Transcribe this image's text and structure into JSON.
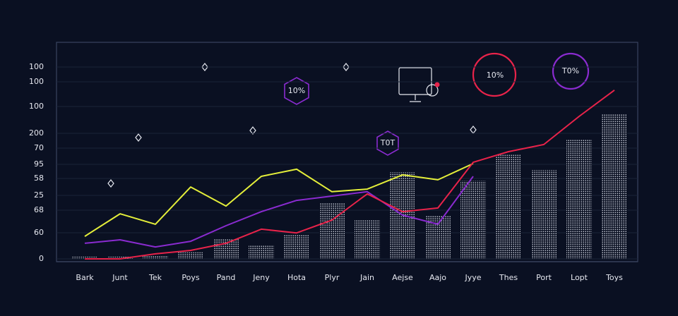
{
  "chart_data": {
    "type": "bar",
    "categories": [
      "Bark",
      "Junt",
      "Tek",
      "Poys",
      "Pand",
      "Jeny",
      "Hota",
      "Plyr",
      "Jain",
      "Aejse",
      "Aajo",
      "Jyye",
      "Thes",
      "Port",
      "Lopt",
      "Toys"
    ],
    "values": [
      1,
      1,
      1.5,
      3,
      9,
      6,
      11,
      26,
      18,
      40,
      20,
      36,
      48,
      41,
      55,
      67
    ],
    "color": "#d9dde8",
    "ylim": [
      0,
      100
    ],
    "y_labels": [
      "100",
      "100",
      "100",
      "200",
      "70",
      "95",
      "58",
      "25",
      "68",
      "60",
      "0"
    ],
    "series": [
      {
        "color": "#e4ee3a",
        "values": [
          10.4,
          20.8,
          16,
          33.2,
          24.4,
          38.1,
          41.4,
          31,
          32.2,
          38.8,
          36.5,
          44,
          null,
          null,
          null,
          null
        ]
      },
      {
        "color": "#8a2bd0",
        "values": [
          7.2,
          8.8,
          5.5,
          8.1,
          15.3,
          21.8,
          27,
          29,
          31,
          20.2,
          16,
          38.1,
          null,
          null,
          null,
          null
        ]
      },
      {
        "color": "#e8234a",
        "values": [
          0,
          0,
          2.3,
          3.9,
          7.2,
          13.7,
          12,
          17.9,
          30,
          21.8,
          23.5,
          44.6,
          49.5,
          52.8,
          65.8,
          77.9
        ]
      }
    ],
    "annotations": [
      "10%",
      "T0T",
      "10%",
      "T0%"
    ]
  }
}
